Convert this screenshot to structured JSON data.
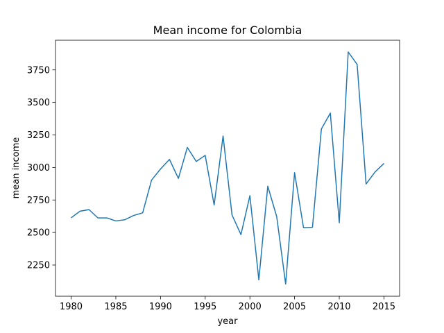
{
  "chart_data": {
    "type": "line",
    "title": "Mean income for Colombia",
    "xlabel": "year",
    "ylabel": "mean income",
    "xlim": [
      1978.25,
      2016.75
    ],
    "ylim": [
      2010,
      3978
    ],
    "xticks": [
      1980,
      1985,
      1990,
      1995,
      2000,
      2005,
      2010,
      2015
    ],
    "yticks": [
      2250,
      2500,
      2750,
      3000,
      3250,
      3500,
      3750
    ],
    "grid": false,
    "line_color": "#1f77b4",
    "series": [
      {
        "x": [
          1980,
          1981,
          1982,
          1983,
          1984,
          1985,
          1986,
          1987,
          1988,
          1989,
          1990,
          1991,
          1992,
          1993,
          1994,
          1995,
          1996,
          1997,
          1998,
          1999,
          2000,
          2001,
          2002,
          2003,
          2004,
          2005,
          2006,
          2007,
          2008,
          2009,
          2010,
          2011,
          2012,
          2013,
          2014,
          2015
        ],
        "values": [
          2613,
          2664,
          2676,
          2612,
          2612,
          2589,
          2598,
          2631,
          2651,
          2903,
          2988,
          3062,
          2916,
          3154,
          3046,
          3093,
          2711,
          3242,
          2635,
          2484,
          2783,
          2136,
          2856,
          2622,
          2104,
          2960,
          2537,
          2540,
          3296,
          3418,
          2575,
          3888,
          3792,
          2873,
          2965,
          3031
        ]
      }
    ]
  }
}
